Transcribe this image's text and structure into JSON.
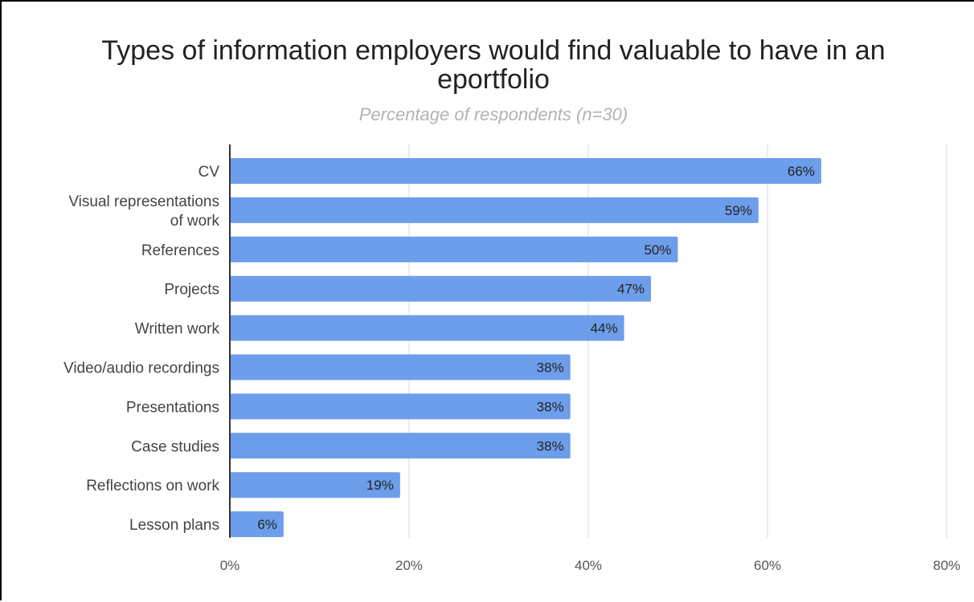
{
  "chart_data": {
    "type": "bar",
    "orientation": "horizontal",
    "title": "Types of information employers would find valuable to have in an eportfolio",
    "subtitle": "Percentage of respondents (n=30)",
    "categories": [
      "CV",
      "Visual representations of work",
      "References",
      "Projects",
      "Written work",
      "Video/audio recordings",
      "Presentations",
      "Case studies",
      "Reflections on work",
      "Lesson plans"
    ],
    "values": [
      66,
      59,
      50,
      47,
      44,
      38,
      38,
      38,
      19,
      6
    ],
    "data_labels": [
      "66%",
      "59%",
      "50%",
      "47%",
      "44%",
      "38%",
      "38%",
      "38%",
      "19%",
      "6%"
    ],
    "xlim": [
      0,
      80
    ],
    "x_ticks": [
      0,
      20,
      40,
      60,
      80
    ],
    "x_tick_labels": [
      "0%",
      "20%",
      "40%",
      "60%",
      "80%"
    ],
    "grid": true,
    "legend": "none",
    "bar_color": "#6d9eeb"
  }
}
